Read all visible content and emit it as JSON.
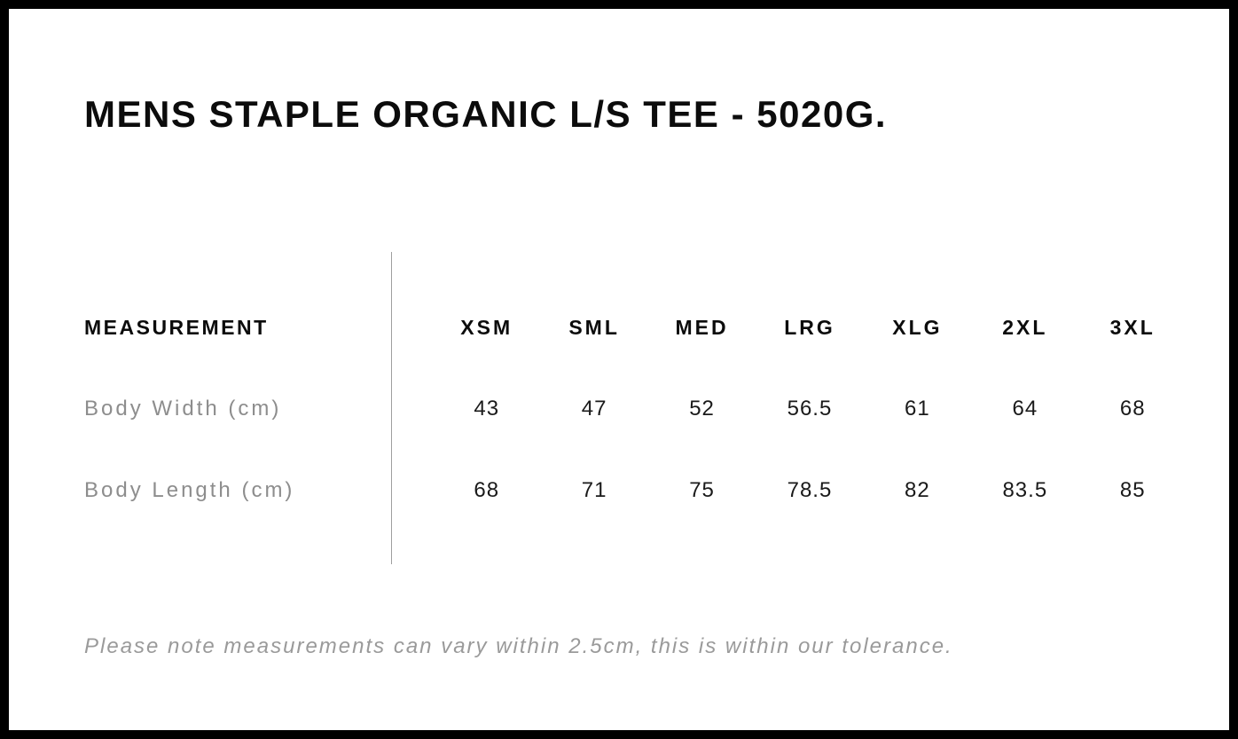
{
  "page": {
    "title": "MENS STAPLE ORGANIC L/S TEE - 5020G.",
    "tolerance_note": "Please note measurements can vary within 2.5cm, this is within our tolerance."
  },
  "size_chart": {
    "measurement_header": "MEASUREMENT",
    "sizes": [
      "XSM",
      "SML",
      "MED",
      "LRG",
      "XLG",
      "2XL",
      "3XL"
    ],
    "rows": [
      {
        "label": "Body Width (cm)",
        "values": [
          "43",
          "47",
          "52",
          "56.5",
          "61",
          "64",
          "68"
        ]
      },
      {
        "label": "Body Length (cm)",
        "values": [
          "68",
          "71",
          "75",
          "78.5",
          "82",
          "83.5",
          "85"
        ]
      }
    ]
  },
  "colors": {
    "frame": "#000000",
    "background": "#ffffff",
    "heading_text": "#0c0c0c",
    "value_text": "#1a1a1a",
    "label_gray": "#8d8d8d",
    "note_gray": "#9a9a9a",
    "divider_gray": "#9e9e9e"
  }
}
